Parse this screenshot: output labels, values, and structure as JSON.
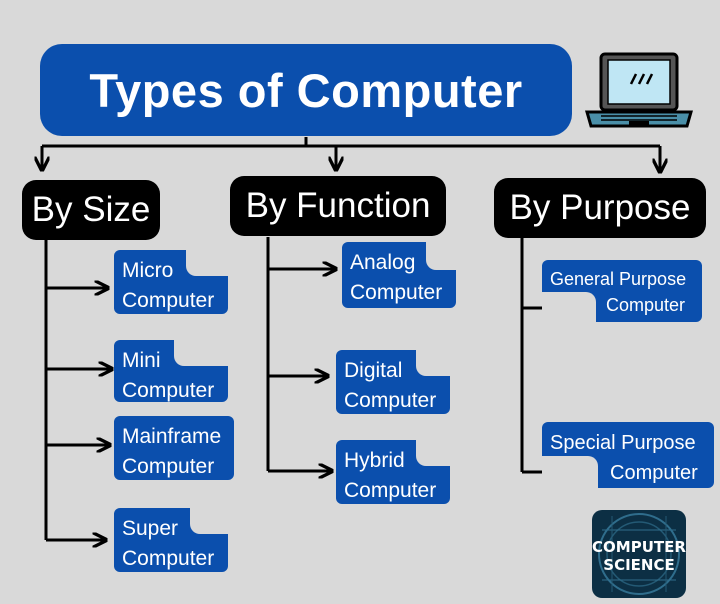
{
  "title": "Types of Computer",
  "colors": {
    "background": "#d9d9d9",
    "title_box": "#0b4fad",
    "category_box": "#000000",
    "leaf_box": "#0b4fad",
    "line": "#000000"
  },
  "categories": [
    {
      "label": "By Size",
      "items": [
        {
          "line1": "Micro",
          "line2": "Computer"
        },
        {
          "line1": "Mini",
          "line2": "Computer"
        },
        {
          "line1": "Mainframe",
          "line2": "Computer"
        },
        {
          "line1": "Super",
          "line2": "Computer"
        }
      ]
    },
    {
      "label": "By Function",
      "items": [
        {
          "line1": "Analog",
          "line2": "Computer"
        },
        {
          "line1": "Digital",
          "line2": "Computer"
        },
        {
          "line1": "Hybrid",
          "line2": "Computer"
        }
      ]
    },
    {
      "label": "By Purpose",
      "items": [
        {
          "line1": "General Purpose",
          "line2": "Computer"
        },
        {
          "line1": "Special Purpose",
          "line2": "Computer"
        }
      ]
    }
  ],
  "badge": {
    "line1": "COMPUTER",
    "line2": "SCIENCE"
  },
  "icons": {
    "laptop": "laptop-icon",
    "arrow": "arrow-right-icon"
  }
}
